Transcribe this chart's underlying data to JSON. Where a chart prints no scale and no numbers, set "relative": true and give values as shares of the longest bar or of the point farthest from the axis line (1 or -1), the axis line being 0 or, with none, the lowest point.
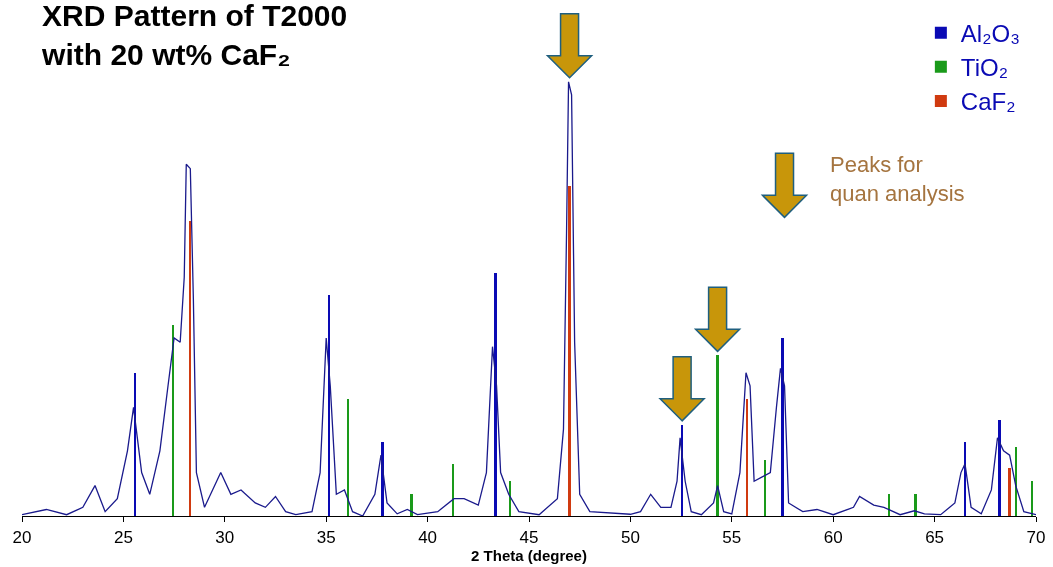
{
  "chart_data": {
    "type": "line",
    "title": "XRD Pattern of T2000\nwith 20 wt% CaF₂",
    "xlabel": "2 Theta (degree)",
    "relative": true,
    "xlim": [
      20,
      70
    ],
    "xticks": [
      20,
      25,
      30,
      35,
      40,
      45,
      50,
      55,
      60,
      65,
      70
    ],
    "legend": "top right",
    "marker": "none",
    "series": [
      {
        "color": "#1a1a8c",
        "x": [
          20,
          21.2,
          22.2,
          23,
          23.6,
          24.1,
          24.7,
          25.2,
          25.5,
          25.9,
          26.3,
          26.8,
          27.2,
          27.5,
          27.8,
          28.0,
          28.1,
          28.3,
          28.45,
          28.6,
          29.0,
          29.8,
          30.3,
          30.8,
          31.5,
          32.0,
          32.5,
          33.0,
          33.5,
          34.3,
          34.7,
          35.0,
          35.2,
          35.5,
          35.9,
          36.3,
          36.8,
          37.4,
          37.7,
          38.0,
          38.5,
          39.0,
          39.5,
          40.5,
          41.3,
          41.8,
          42.5,
          42.9,
          43.2,
          43.4,
          43.6,
          44.0,
          44.5,
          45.5,
          46.4,
          46.7,
          46.85,
          46.95,
          47.1,
          47.25,
          47.5,
          48,
          50,
          50.5,
          51.0,
          51.5,
          52.0,
          52.3,
          52.45,
          52.7,
          53.0,
          53.5,
          54.1,
          54.3,
          54.6,
          55.0,
          55.4,
          55.7,
          55.9,
          56.1,
          56.5,
          56.9,
          57.2,
          57.4,
          57.6,
          57.8,
          58.5,
          59.2,
          60,
          61.0,
          61.3,
          62.0,
          62.5,
          63.3,
          64.0,
          64.5,
          65.3,
          66.0,
          66.3,
          66.5,
          66.8,
          67.3,
          67.8,
          68.1,
          68.4,
          68.7,
          69.0,
          69.4,
          70
        ],
        "values": [
          0.003,
          0.015,
          0.003,
          0.02,
          0.07,
          0.01,
          0.04,
          0.15,
          0.25,
          0.1,
          0.05,
          0.15,
          0.3,
          0.41,
          0.4,
          0.55,
          0.81,
          0.8,
          0.5,
          0.1,
          0.02,
          0.1,
          0.05,
          0.06,
          0.03,
          0.02,
          0.045,
          0.01,
          0.003,
          0.01,
          0.1,
          0.41,
          0.3,
          0.05,
          0.06,
          0.01,
          0.0,
          0.05,
          0.14,
          0.03,
          0.005,
          0.015,
          0.003,
          0.01,
          0.04,
          0.04,
          0.025,
          0.1,
          0.39,
          0.3,
          0.1,
          0.05,
          0.01,
          0.003,
          0.04,
          0.2,
          0.65,
          1.0,
          0.97,
          0.4,
          0.05,
          0.01,
          0.004,
          0.01,
          0.05,
          0.02,
          0.02,
          0.08,
          0.18,
          0.08,
          0.01,
          0.003,
          0.03,
          0.07,
          0.01,
          0.005,
          0.1,
          0.33,
          0.3,
          0.08,
          0.09,
          0.1,
          0.25,
          0.34,
          0.3,
          0.03,
          0.01,
          0.015,
          0.003,
          0.02,
          0.045,
          0.025,
          0.02,
          0.003,
          0.012,
          0.005,
          0.003,
          0.03,
          0.1,
          0.12,
          0.02,
          0.005,
          0.06,
          0.18,
          0.15,
          0.14,
          0.07,
          0.01,
          0.003
        ]
      },
      {
        "type": "bar",
        "name": "Al₂O₃",
        "color": "#0a0ab4",
        "x": [
          25.57,
          35.15,
          37.77,
          43.35,
          52.55,
          57.5,
          66.5,
          68.2
        ],
        "values": [
          0.33,
          0.51,
          0.17,
          0.56,
          0.21,
          0.41,
          0.17,
          0.22
        ]
      },
      {
        "type": "bar",
        "name": "TiO₂",
        "color": "#1a9a1a",
        "x": [
          27.45,
          36.08,
          39.2,
          41.25,
          44.05,
          54.3,
          56.65,
          62.75,
          64.05,
          69.0,
          69.8
        ],
        "values": [
          0.44,
          0.27,
          0.05,
          0.12,
          0.08,
          0.37,
          0.13,
          0.05,
          0.05,
          0.16,
          0.08
        ]
      },
      {
        "type": "bar",
        "name": "CaF₂",
        "color": "#d03a10",
        "x": [
          28.27,
          47.0,
          55.76,
          68.7
        ],
        "values": [
          0.68,
          0.76,
          0.27,
          0.11
        ]
      }
    ],
    "annotations": [
      "Peaks for\nquan analysis"
    ]
  }
}
